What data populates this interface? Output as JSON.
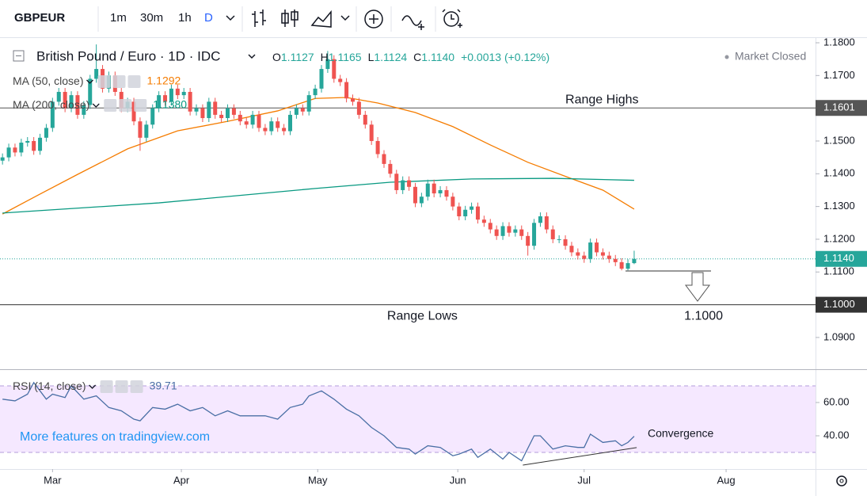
{
  "toolbar": {
    "symbol": "GBPEUR",
    "intervals": [
      "1m",
      "30m",
      "1h",
      "D"
    ]
  },
  "chart_data": {
    "type": "candlestick",
    "title": "British Pound / Euro · 1D · IDC",
    "ohlc_header": [
      {
        "key": "O",
        "value": "1.1127"
      },
      {
        "key": "H",
        "value": "1.1165"
      },
      {
        "key": "L",
        "value": "1.1124"
      },
      {
        "key": "C",
        "value": "1.1140"
      }
    ],
    "change": "+0.0013 (+0.12%)",
    "status": "Market Closed",
    "up_color": "#26a69a",
    "down_color": "#ef5350",
    "xlim": [
      -0.4,
      130
    ],
    "xticks": [
      {
        "value": 8,
        "label": "Mar"
      },
      {
        "value": 28.6,
        "label": "Apr"
      },
      {
        "value": 50.4,
        "label": "May"
      },
      {
        "value": 72.8,
        "label": "Jun"
      },
      {
        "value": 93,
        "label": "Jul"
      },
      {
        "value": 115.7,
        "label": "Aug"
      }
    ],
    "ylim": [
      1.0803,
      1.18145
    ],
    "yticks": [
      {
        "value": 1.18,
        "label": "1.1800"
      },
      {
        "value": 1.17,
        "label": "1.1700"
      },
      {
        "value": 1.15,
        "label": "1.1500"
      },
      {
        "value": 1.14,
        "label": "1.1400"
      },
      {
        "value": 1.13,
        "label": "1.1300"
      },
      {
        "value": 1.12,
        "label": "1.1200"
      },
      {
        "value": 1.11,
        "label": "1.1100"
      },
      {
        "value": 1.09,
        "label": "1.0900"
      }
    ],
    "price_lines": [
      {
        "value": 1.1601,
        "label": "1.1601",
        "style": "solid",
        "color": "#555555"
      },
      {
        "value": 1.114,
        "label": "1.1140",
        "style": "dotted",
        "color": "#26a69a"
      },
      {
        "value": 1.1,
        "label": "1.1000",
        "style": "solid",
        "color": "#333333"
      }
    ],
    "annotations": [
      {
        "text": "Range Highs",
        "x": 90,
        "y": 1.1625
      },
      {
        "text": "Range Lows",
        "x": 61.5,
        "y": 1.0965
      },
      {
        "text": "1.1000",
        "x": 109,
        "y": 1.0965
      }
    ],
    "candles": [
      [
        1.144,
        1.1462,
        1.1428,
        1.145
      ],
      [
        1.145,
        1.1492,
        1.1438,
        1.148
      ],
      [
        1.148,
        1.1492,
        1.1453,
        1.1465
      ],
      [
        1.1465,
        1.1507,
        1.1453,
        1.1495
      ],
      [
        1.1495,
        1.1512,
        1.1483,
        1.15
      ],
      [
        1.15,
        1.1512,
        1.1458,
        1.147
      ],
      [
        1.147,
        1.1522,
        1.1458,
        1.151
      ],
      [
        1.151,
        1.1552,
        1.1498,
        1.154
      ],
      [
        1.154,
        1.1632,
        1.1528,
        1.162
      ],
      [
        1.162,
        1.1662,
        1.1608,
        1.165
      ],
      [
        1.165,
        1.1662,
        1.1588,
        1.16
      ],
      [
        1.16,
        1.1652,
        1.1588,
        1.164
      ],
      [
        1.164,
        1.1652,
        1.1568,
        1.158
      ],
      [
        1.158,
        1.1622,
        1.1568,
        1.161
      ],
      [
        1.161,
        1.1702,
        1.1598,
        1.169
      ],
      [
        1.169,
        1.1795,
        1.1678,
        1.172
      ],
      [
        1.172,
        1.1732,
        1.1648,
        1.166
      ],
      [
        1.166,
        1.1712,
        1.1648,
        1.17
      ],
      [
        1.17,
        1.1712,
        1.1638,
        1.165
      ],
      [
        1.165,
        1.1662,
        1.1588,
        1.16
      ],
      [
        1.16,
        1.1632,
        1.1588,
        1.162
      ],
      [
        1.162,
        1.1632,
        1.1548,
        1.156
      ],
      [
        1.156,
        1.1572,
        1.147,
        1.151
      ],
      [
        1.151,
        1.1562,
        1.1498,
        1.155
      ],
      [
        1.155,
        1.1612,
        1.1538,
        1.16
      ],
      [
        1.16,
        1.1652,
        1.1588,
        1.164
      ],
      [
        1.164,
        1.1652,
        1.1608,
        1.162
      ],
      [
        1.162,
        1.1672,
        1.1608,
        1.166
      ],
      [
        1.166,
        1.1672,
        1.1628,
        1.164
      ],
      [
        1.164,
        1.1662,
        1.1628,
        1.165
      ],
      [
        1.165,
        1.1662,
        1.1578,
        1.159
      ],
      [
        1.159,
        1.1612,
        1.1578,
        1.16
      ],
      [
        1.16,
        1.1612,
        1.1558,
        1.157
      ],
      [
        1.157,
        1.1632,
        1.1558,
        1.162
      ],
      [
        1.162,
        1.1632,
        1.1568,
        1.158
      ],
      [
        1.158,
        1.1592,
        1.1558,
        1.157
      ],
      [
        1.157,
        1.1612,
        1.1558,
        1.16
      ],
      [
        1.16,
        1.1612,
        1.1568,
        1.158
      ],
      [
        1.158,
        1.1592,
        1.1548,
        1.156
      ],
      [
        1.156,
        1.1572,
        1.1538,
        1.155
      ],
      [
        1.155,
        1.1592,
        1.1538,
        1.158
      ],
      [
        1.158,
        1.1592,
        1.1528,
        1.154
      ],
      [
        1.154,
        1.1552,
        1.1518,
        1.153
      ],
      [
        1.153,
        1.1572,
        1.1518,
        1.156
      ],
      [
        1.156,
        1.1572,
        1.1528,
        1.154
      ],
      [
        1.154,
        1.1552,
        1.1518,
        1.153
      ],
      [
        1.153,
        1.1592,
        1.1518,
        1.158
      ],
      [
        1.158,
        1.1612,
        1.1568,
        1.16
      ],
      [
        1.16,
        1.1612,
        1.1578,
        1.159
      ],
      [
        1.159,
        1.1652,
        1.1578,
        1.164
      ],
      [
        1.164,
        1.1672,
        1.1628,
        1.166
      ],
      [
        1.166,
        1.1732,
        1.1648,
        1.172
      ],
      [
        1.172,
        1.1775,
        1.1708,
        1.175
      ],
      [
        1.175,
        1.1762,
        1.1678,
        1.169
      ],
      [
        1.169,
        1.1702,
        1.1668,
        1.168
      ],
      [
        1.168,
        1.1692,
        1.1618,
        1.163
      ],
      [
        1.163,
        1.1642,
        1.1608,
        1.162
      ],
      [
        1.162,
        1.1632,
        1.1568,
        1.158
      ],
      [
        1.158,
        1.1592,
        1.1538,
        1.155
      ],
      [
        1.155,
        1.1562,
        1.1488,
        1.15
      ],
      [
        1.15,
        1.1512,
        1.1448,
        1.146
      ],
      [
        1.146,
        1.1472,
        1.1418,
        1.143
      ],
      [
        1.143,
        1.1442,
        1.1388,
        1.14
      ],
      [
        1.14,
        1.1412,
        1.1338,
        1.135
      ],
      [
        1.135,
        1.1392,
        1.1338,
        1.138
      ],
      [
        1.138,
        1.1392,
        1.1348,
        1.136
      ],
      [
        1.136,
        1.1372,
        1.1298,
        1.131
      ],
      [
        1.131,
        1.1342,
        1.1298,
        1.133
      ],
      [
        1.133,
        1.1382,
        1.1318,
        1.137
      ],
      [
        1.137,
        1.1382,
        1.1328,
        1.134
      ],
      [
        1.134,
        1.1362,
        1.1328,
        1.135
      ],
      [
        1.135,
        1.1362,
        1.1318,
        1.133
      ],
      [
        1.133,
        1.1342,
        1.1288,
        1.13
      ],
      [
        1.13,
        1.1312,
        1.1258,
        1.127
      ],
      [
        1.127,
        1.1302,
        1.1258,
        1.129
      ],
      [
        1.129,
        1.1312,
        1.1278,
        1.13
      ],
      [
        1.13,
        1.1312,
        1.1248,
        1.126
      ],
      [
        1.126,
        1.1272,
        1.1238,
        1.125
      ],
      [
        1.125,
        1.1262,
        1.1218,
        1.123
      ],
      [
        1.123,
        1.1242,
        1.1198,
        1.121
      ],
      [
        1.121,
        1.1252,
        1.1198,
        1.124
      ],
      [
        1.124,
        1.1252,
        1.1208,
        1.122
      ],
      [
        1.122,
        1.1242,
        1.1208,
        1.123
      ],
      [
        1.123,
        1.1242,
        1.1198,
        1.121
      ],
      [
        1.121,
        1.1222,
        1.115,
        1.118
      ],
      [
        1.118,
        1.1262,
        1.1168,
        1.125
      ],
      [
        1.125,
        1.1282,
        1.1238,
        1.127
      ],
      [
        1.127,
        1.1282,
        1.1218,
        1.123
      ],
      [
        1.123,
        1.1242,
        1.1188,
        1.12
      ],
      [
        1.12,
        1.1212,
        1.1188,
        1.12
      ],
      [
        1.12,
        1.1212,
        1.1168,
        1.118
      ],
      [
        1.118,
        1.1192,
        1.1148,
        1.116
      ],
      [
        1.116,
        1.1172,
        1.1138,
        1.115
      ],
      [
        1.115,
        1.1162,
        1.1128,
        1.114
      ],
      [
        1.114,
        1.1202,
        1.1128,
        1.119
      ],
      [
        1.119,
        1.1202,
        1.1148,
        1.116
      ],
      [
        1.116,
        1.1172,
        1.1138,
        1.115
      ],
      [
        1.115,
        1.1162,
        1.1128,
        1.114
      ],
      [
        1.114,
        1.1152,
        1.1118,
        1.113
      ],
      [
        1.113,
        1.1142,
        1.1105,
        1.111
      ],
      [
        1.111,
        1.1139,
        1.1105,
        1.1127
      ],
      [
        1.1127,
        1.1165,
        1.1124,
        1.114
      ]
    ],
    "ma": [
      {
        "name": "MA (50, close)",
        "color": "#f57c00",
        "last_label": "1.1292",
        "x": [
          0,
          6,
          12,
          20,
          28,
          36,
          44,
          50,
          55,
          60,
          66,
          72,
          78,
          84,
          91,
          96,
          101
        ],
        "values": [
          1.1277,
          1.1338,
          1.1398,
          1.1476,
          1.1531,
          1.156,
          1.1592,
          1.163,
          1.1633,
          1.1616,
          1.1587,
          1.1544,
          1.1488,
          1.1435,
          1.1385,
          1.135,
          1.1292
        ]
      },
      {
        "name": "MA (200, close)",
        "color": "#089981",
        "last_label": "1.1380",
        "x": [
          0,
          25,
          50,
          62,
          75,
          88,
          101
        ],
        "values": [
          1.128,
          1.1311,
          1.1355,
          1.1374,
          1.1384,
          1.1386,
          1.138
        ]
      }
    ],
    "rsi": {
      "name": "RSI (14, close)",
      "value_label": "39.71",
      "color": "#4a6fa5",
      "ylim": [
        20,
        80
      ],
      "yticks": [
        {
          "value": 60,
          "label": "60.00"
        },
        {
          "value": 40,
          "label": "40.00"
        }
      ],
      "band": [
        30,
        70
      ],
      "watermark": "More features on tradingview.com",
      "x": [
        0,
        2,
        4,
        5,
        7,
        8,
        10,
        11,
        13,
        15,
        17,
        19,
        21,
        22,
        24,
        26,
        28,
        30,
        32,
        34,
        36,
        38,
        40,
        42,
        44,
        46,
        48,
        49,
        51,
        53,
        55,
        57,
        59,
        61,
        63,
        65,
        66,
        68,
        70,
        72,
        73,
        75,
        76,
        78,
        80,
        81,
        83,
        85,
        86,
        88,
        90,
        92,
        93,
        94,
        96,
        98,
        99,
        100,
        101
      ],
      "values": [
        62,
        61,
        65,
        72,
        62,
        65,
        63,
        70,
        62,
        64,
        57,
        55,
        50,
        49,
        57,
        56,
        59,
        55,
        57,
        52,
        55,
        52,
        52,
        52,
        50,
        57,
        59,
        64,
        67,
        62,
        56,
        52,
        45,
        40,
        33,
        32,
        29,
        34,
        33,
        28,
        29,
        32,
        27,
        32,
        26,
        30,
        25,
        40,
        40,
        32,
        34,
        33,
        33,
        41,
        36,
        37,
        34,
        36,
        39.71
      ],
      "annotation": {
        "text": "Convergence",
        "x": [
          83.2,
          101.4
        ],
        "values": [
          22.4,
          32.9
        ]
      }
    }
  }
}
